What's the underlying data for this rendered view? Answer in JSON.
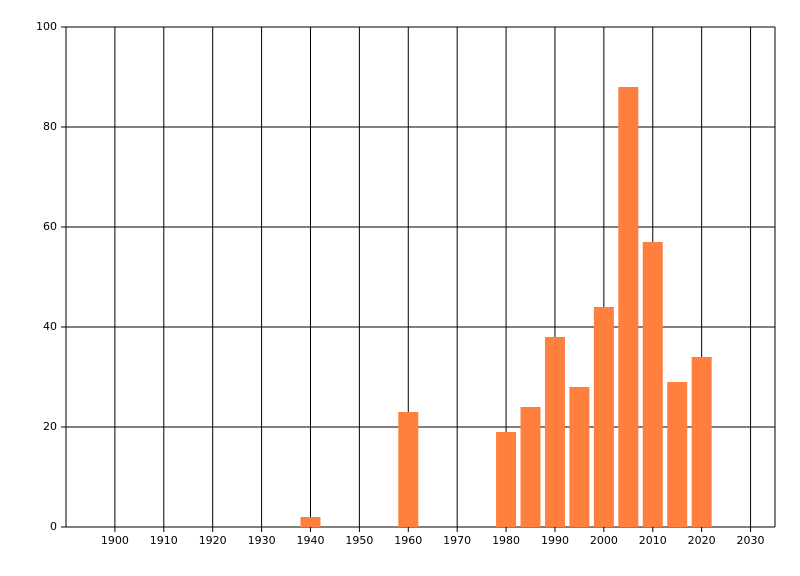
{
  "chart_data": {
    "type": "bar",
    "x": [
      1940,
      1960,
      1980,
      1985,
      1990,
      1995,
      2000,
      2005,
      2010,
      2015,
      2020
    ],
    "values": [
      2,
      23,
      19,
      24,
      38,
      28,
      44,
      88,
      57,
      29,
      34
    ],
    "color": "#ff7f3f",
    "xlim": [
      1890,
      2035
    ],
    "xticks": [
      1900,
      1910,
      1920,
      1930,
      1940,
      1950,
      1960,
      1970,
      1980,
      1990,
      2000,
      2010,
      2020,
      2030
    ],
    "ylim": [
      0,
      100
    ],
    "yticks": [
      0,
      20,
      40,
      60,
      80,
      100
    ],
    "grid": true
  }
}
